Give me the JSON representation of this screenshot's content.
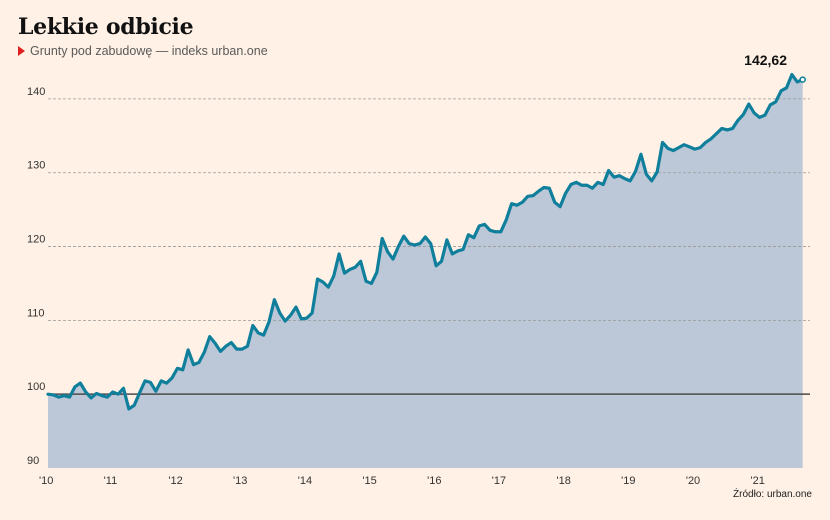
{
  "header": {
    "title": "Lekkie odbicie",
    "subtitle": "Grunty pod zabudowę — indeks urban.one"
  },
  "footer": {
    "source": "Źródło: urban.one"
  },
  "colors": {
    "background": "#FFF1E5",
    "line": "#0F7F9C",
    "area": "#BCC8D8",
    "marker": "#E02020",
    "baseline": "#4a4a4a",
    "grid": "#9a9a9a"
  },
  "chart_data": {
    "type": "area",
    "title": "Lekkie odbicie",
    "subtitle": "Grunty pod zabudowę — indeks urban.one",
    "xlabel": "",
    "ylabel": "",
    "ylim": [
      90,
      145
    ],
    "xlim": [
      2010,
      2021.78
    ],
    "yticks": [
      90,
      100,
      110,
      120,
      130,
      140
    ],
    "ytick_labels": [
      "90",
      "100",
      "110",
      "120",
      "130",
      "140"
    ],
    "xticks": [
      2010,
      2011,
      2012,
      2013,
      2014,
      2015,
      2016,
      2017,
      2018,
      2019,
      2020,
      2021
    ],
    "xtick_labels": [
      "'10",
      "'11",
      "'12",
      "'13",
      "'14",
      "'15",
      "'16",
      "'17",
      "'18",
      "'19",
      "'20",
      "'21"
    ],
    "grid": true,
    "baseline": 100,
    "last_value_label": "142,62",
    "series": [
      {
        "x_start": 2010,
        "x_step_months": 1,
        "values": [
          100.0,
          99.9,
          99.6,
          99.8,
          99.6,
          101.0,
          101.5,
          100.3,
          99.5,
          100.1,
          99.8,
          99.6,
          100.3,
          100.0,
          100.8,
          98.0,
          98.5,
          100.2,
          101.8,
          101.6,
          100.4,
          101.8,
          101.5,
          102.2,
          103.5,
          103.3,
          106.0,
          104.0,
          104.3,
          105.7,
          107.8,
          106.9,
          105.8,
          106.5,
          107.0,
          106.1,
          106.1,
          106.5,
          109.3,
          108.3,
          108.0,
          109.8,
          112.8,
          111.0,
          109.9,
          110.7,
          111.8,
          110.2,
          110.3,
          111.0,
          115.6,
          115.2,
          114.5,
          116.0,
          119.0,
          116.4,
          116.9,
          117.2,
          118.0,
          115.3,
          115.0,
          116.5,
          121.1,
          119.3,
          118.3,
          120.0,
          121.4,
          120.4,
          120.2,
          120.4,
          121.3,
          120.4,
          117.4,
          118.0,
          120.9,
          119.0,
          119.4,
          119.6,
          121.6,
          121.2,
          122.8,
          123.0,
          122.2,
          122.0,
          122.0,
          123.6,
          125.8,
          125.6,
          126.0,
          126.8,
          126.9,
          127.5,
          128.0,
          127.9,
          126.0,
          125.4,
          127.2,
          128.4,
          128.7,
          128.3,
          128.3,
          127.9,
          128.7,
          128.4,
          130.3,
          129.4,
          129.6,
          129.2,
          128.9,
          130.2,
          132.5,
          129.8,
          128.9,
          130.1,
          134.1,
          133.3,
          133.0,
          133.4,
          133.8,
          133.5,
          133.2,
          133.4,
          134.1,
          134.6,
          135.3,
          136.0,
          135.8,
          136.0,
          137.1,
          137.9,
          139.3,
          138.1,
          137.5,
          137.8,
          139.2,
          139.6,
          141.1,
          141.5,
          143.3,
          142.3,
          142.62
        ]
      }
    ]
  }
}
